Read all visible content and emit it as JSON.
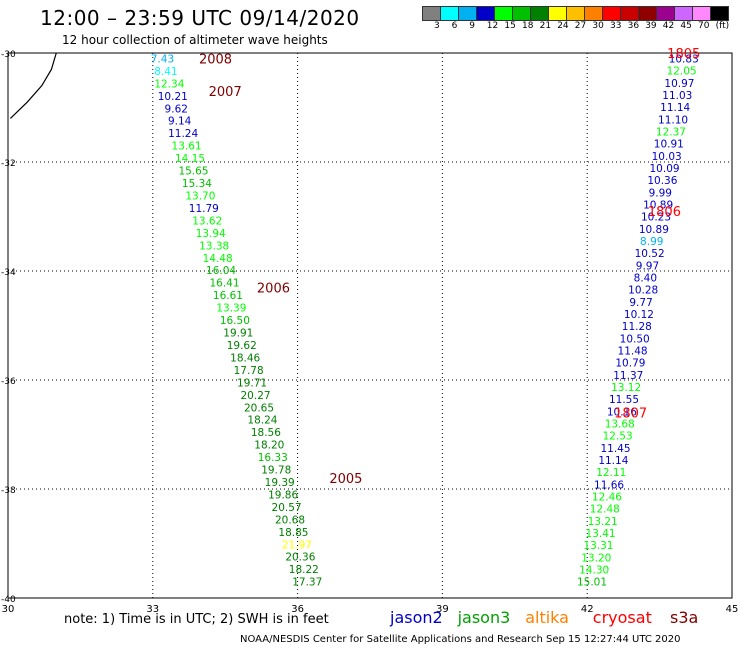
{
  "header": {
    "title": "12:00 – 23:59 UTC 09/14/2020",
    "subtitle": "12 hour collection of altimeter wave heights"
  },
  "colorbar": {
    "colors": [
      "#808080",
      "#00ffff",
      "#00b0f0",
      "#0000c8",
      "#00ff00",
      "#00c000",
      "#008000",
      "#ffff00",
      "#ffc000",
      "#ff8000",
      "#ff0000",
      "#c80000",
      "#900000",
      "#9b008f",
      "#cc66ff",
      "#ff88ff",
      "#000000"
    ],
    "ticks": [
      "3",
      "6",
      "9",
      "12",
      "15",
      "18",
      "21",
      "24",
      "27",
      "30",
      "33",
      "36",
      "39",
      "42",
      "45",
      "70",
      "(ft)"
    ]
  },
  "map": {
    "x_ticks": [
      "30",
      "33",
      "36",
      "39",
      "42",
      "45"
    ],
    "y_ticks": [
      "-30",
      "-32",
      "-34",
      "-36",
      "-38",
      "-40"
    ],
    "lon_range": [
      30,
      45
    ],
    "lat_range": [
      -40,
      -30
    ]
  },
  "tracks": [
    {
      "satellite": "jason3",
      "lon_start": 33.2,
      "lon_end": 36.2,
      "lat_start": -30.1,
      "lat_end": -39.7,
      "values": [
        {
          "v": "7.43",
          "c": "#00b0f0"
        },
        {
          "v": "8.41",
          "c": "#00ffff"
        },
        {
          "v": "12.34",
          "c": "#00ff00"
        },
        {
          "v": "10.21",
          "c": "#0000c8"
        },
        {
          "v": "9.62",
          "c": "#0000c8"
        },
        {
          "v": "9.14",
          "c": "#0000c8"
        },
        {
          "v": "11.24",
          "c": "#0000c8"
        },
        {
          "v": "13.61",
          "c": "#00ff00"
        },
        {
          "v": "14.15",
          "c": "#00ff00"
        },
        {
          "v": "15.65",
          "c": "#00c000"
        },
        {
          "v": "15.34",
          "c": "#00c000"
        },
        {
          "v": "13.70",
          "c": "#00ff00"
        },
        {
          "v": "11.79",
          "c": "#0000c8"
        },
        {
          "v": "13.62",
          "c": "#00ff00"
        },
        {
          "v": "13.94",
          "c": "#00ff00"
        },
        {
          "v": "13.38",
          "c": "#00ff00"
        },
        {
          "v": "14.48",
          "c": "#00ff00"
        },
        {
          "v": "16.04",
          "c": "#00c000"
        },
        {
          "v": "16.41",
          "c": "#00c000"
        },
        {
          "v": "16.61",
          "c": "#00c000"
        },
        {
          "v": "13.39",
          "c": "#00ff00"
        },
        {
          "v": "16.50",
          "c": "#00c000"
        },
        {
          "v": "19.91",
          "c": "#008000"
        },
        {
          "v": "19.62",
          "c": "#008000"
        },
        {
          "v": "18.46",
          "c": "#008000"
        },
        {
          "v": "17.78",
          "c": "#008000"
        },
        {
          "v": "19.71",
          "c": "#008000"
        },
        {
          "v": "20.27",
          "c": "#008000"
        },
        {
          "v": "20.65",
          "c": "#008000"
        },
        {
          "v": "18.24",
          "c": "#008000"
        },
        {
          "v": "18.56",
          "c": "#008000"
        },
        {
          "v": "18.20",
          "c": "#008000"
        },
        {
          "v": "16.33",
          "c": "#00c000"
        },
        {
          "v": "19.78",
          "c": "#008000"
        },
        {
          "v": "19.39",
          "c": "#008000"
        },
        {
          "v": "19.86",
          "c": "#008000"
        },
        {
          "v": "20.57",
          "c": "#008000"
        },
        {
          "v": "20.68",
          "c": "#008000"
        },
        {
          "v": "18.85",
          "c": "#008000"
        },
        {
          "v": "21.97",
          "c": "#ffff00"
        },
        {
          "v": "20.36",
          "c": "#008000"
        },
        {
          "v": "18.22",
          "c": "#008000"
        },
        {
          "v": "17.37",
          "c": "#008000"
        }
      ]
    },
    {
      "satellite": "jason2",
      "lon_start": 44.0,
      "lon_end": 42.1,
      "lat_start": -30.1,
      "lat_end": -39.7,
      "values": [
        {
          "v": "10.83",
          "c": "#0000c8"
        },
        {
          "v": "12.05",
          "c": "#00ff00"
        },
        {
          "v": "10.97",
          "c": "#0000c8"
        },
        {
          "v": "11.03",
          "c": "#0000c8"
        },
        {
          "v": "11.14",
          "c": "#0000c8"
        },
        {
          "v": "11.10",
          "c": "#0000c8"
        },
        {
          "v": "12.37",
          "c": "#00ff00"
        },
        {
          "v": "10.91",
          "c": "#0000c8"
        },
        {
          "v": "10.03",
          "c": "#0000c8"
        },
        {
          "v": "10.09",
          "c": "#0000c8"
        },
        {
          "v": "10.36",
          "c": "#0000c8"
        },
        {
          "v": "9.99",
          "c": "#0000c8"
        },
        {
          "v": "10.89",
          "c": "#0000c8"
        },
        {
          "v": "10.23",
          "c": "#0000c8"
        },
        {
          "v": "10.89",
          "c": "#0000c8"
        },
        {
          "v": "8.99",
          "c": "#00b0f0"
        },
        {
          "v": "10.52",
          "c": "#0000c8"
        },
        {
          "v": "9.97",
          "c": "#0000c8"
        },
        {
          "v": "8.40",
          "c": "#0000c8"
        },
        {
          "v": "10.28",
          "c": "#0000c8"
        },
        {
          "v": "9.77",
          "c": "#0000c8"
        },
        {
          "v": "10.12",
          "c": "#0000c8"
        },
        {
          "v": "11.28",
          "c": "#0000c8"
        },
        {
          "v": "10.50",
          "c": "#0000c8"
        },
        {
          "v": "11.48",
          "c": "#0000c8"
        },
        {
          "v": "10.79",
          "c": "#0000c8"
        },
        {
          "v": "11.37",
          "c": "#0000c8"
        },
        {
          "v": "13.12",
          "c": "#00ff00"
        },
        {
          "v": "11.55",
          "c": "#0000c8"
        },
        {
          "v": "10.16",
          "c": "#0000c8"
        },
        {
          "v": "13.68",
          "c": "#00ff00"
        },
        {
          "v": "12.53",
          "c": "#00ff00"
        },
        {
          "v": "11.45",
          "c": "#0000c8"
        },
        {
          "v": "11.14",
          "c": "#0000c8"
        },
        {
          "v": "12.11",
          "c": "#00ff00"
        },
        {
          "v": "11.66",
          "c": "#0000c8"
        },
        {
          "v": "12.46",
          "c": "#00ff00"
        },
        {
          "v": "12.48",
          "c": "#00ff00"
        },
        {
          "v": "13.21",
          "c": "#00ff00"
        },
        {
          "v": "13.41",
          "c": "#00ff00"
        },
        {
          "v": "13.31",
          "c": "#00ff00"
        },
        {
          "v": "13.20",
          "c": "#00ff00"
        },
        {
          "v": "14.30",
          "c": "#00ff00"
        },
        {
          "v": "15.01",
          "c": "#00c000"
        }
      ]
    }
  ],
  "time_labels": [
    {
      "text": "2008",
      "lon": 34.3,
      "lat": -30.1,
      "color": "#800000"
    },
    {
      "text": "2007",
      "lon": 34.5,
      "lat": -30.7,
      "color": "#800000"
    },
    {
      "text": "2006",
      "lon": 35.5,
      "lat": -34.3,
      "color": "#800000"
    },
    {
      "text": "2005",
      "lon": 37.0,
      "lat": -37.8,
      "color": "#800000"
    },
    {
      "text": "1805",
      "lon": 44.0,
      "lat": -30.0,
      "color": "#ff0000"
    },
    {
      "text": "1806",
      "lon": 43.6,
      "lat": -32.9,
      "color": "#ff0000"
    },
    {
      "text": "1807",
      "lon": 42.9,
      "lat": -36.6,
      "color": "#ff0000"
    }
  ],
  "coastline": [
    [
      30.05,
      -31.2
    ],
    [
      30.4,
      -30.9
    ],
    [
      30.7,
      -30.6
    ],
    [
      30.9,
      -30.3
    ],
    [
      31.0,
      -30.0
    ]
  ],
  "footer": {
    "note": "note:  1) Time is in UTC;  2) SWH is in feet",
    "credit": "NOAA/NESDIS Center for Satellite Applications and Research   Sep 15 12:27:44 UTC 2020",
    "satellites": [
      {
        "label": "jason2",
        "color": "#0000c8"
      },
      {
        "label": "jason3",
        "color": "#00a000"
      },
      {
        "label": "altika",
        "color": "#ff8000"
      },
      {
        "label": "cryosat",
        "color": "#ff0000"
      },
      {
        "label": "s3a",
        "color": "#800000"
      }
    ]
  }
}
